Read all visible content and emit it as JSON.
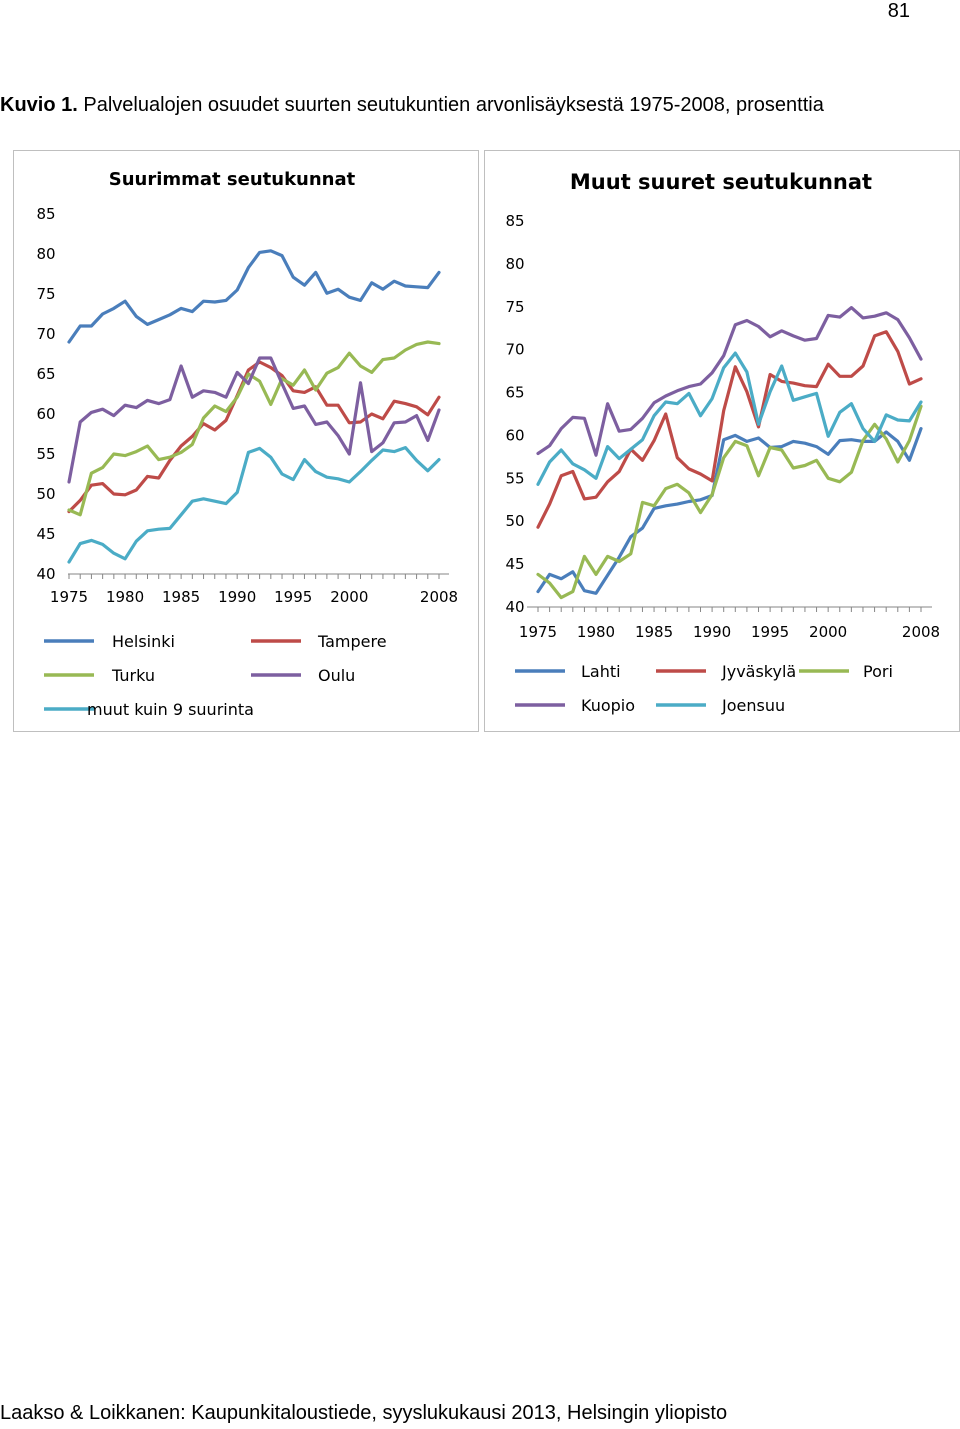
{
  "page_number": "81",
  "figure_label": "Kuvio 1.",
  "figure_title": "Palvelualojen osuudet suurten seutukuntien arvonlisäyksestä 1975-2008, prosenttia",
  "footer": "Laakso & Loikkanen: Kaupunkitaloustiede, syyslukukausi 2013, Helsingin yliopisto",
  "chart_data": [
    {
      "type": "line",
      "title": "Suurimmat seutukunnat",
      "ylim": [
        40,
        85
      ],
      "yticks": [
        "40",
        "45",
        "50",
        "55",
        "60",
        "65",
        "70",
        "75",
        "80",
        "85"
      ],
      "xtick_labels": [
        "1975",
        "1980",
        "1985",
        "1990",
        "1995",
        "2000",
        "2008"
      ],
      "xtick_years": [
        1975,
        1980,
        1985,
        1990,
        1995,
        2000,
        2008
      ],
      "xlim": [
        1975,
        2008
      ],
      "x": [
        1975,
        1976,
        1977,
        1978,
        1979,
        1980,
        1981,
        1982,
        1983,
        1984,
        1985,
        1986,
        1987,
        1988,
        1989,
        1990,
        1991,
        1992,
        1993,
        1994,
        1995,
        1996,
        1997,
        1998,
        1999,
        2000,
        2001,
        2002,
        2003,
        2004,
        2005,
        2006,
        2007,
        2008
      ],
      "series": [
        {
          "name": "Helsinki",
          "color": "#4a7ebb",
          "values": [
            69,
            71,
            71,
            72.5,
            73.2,
            74.1,
            72.2,
            71.2,
            71.8,
            72.4,
            73.2,
            72.8,
            74.1,
            74,
            74.2,
            75.5,
            78.3,
            80.2,
            80.4,
            79.8,
            77.1,
            76.1,
            77.7,
            75.1,
            75.6,
            74.6,
            74.2,
            76.4,
            75.6,
            76.6,
            76,
            75.9,
            75.8,
            77.7
          ]
        },
        {
          "name": "Tampere",
          "color": "#be4b48",
          "values": [
            47.8,
            49.2,
            51.1,
            51.3,
            50,
            49.9,
            50.5,
            52.2,
            52,
            54.2,
            56,
            57.2,
            58.8,
            58,
            59.2,
            62.3,
            65.5,
            66.5,
            65.8,
            64.8,
            62.9,
            62.7,
            63.4,
            61.1,
            61.1,
            58.9,
            59,
            60,
            59.4,
            61.6,
            61.3,
            60.9,
            59.9,
            62.1
          ]
        },
        {
          "name": "Turku",
          "color": "#98b954",
          "values": [
            48,
            47.4,
            52.6,
            53.3,
            55,
            54.8,
            55.3,
            56,
            54.3,
            54.6,
            55.2,
            56.2,
            59.5,
            61,
            60.3,
            62.1,
            65,
            64.1,
            61.2,
            64.4,
            63.6,
            65.5,
            63,
            65.1,
            65.8,
            67.6,
            66,
            65.2,
            66.8,
            67,
            68,
            68.7,
            69,
            68.8
          ]
        },
        {
          "name": "Oulu",
          "color": "#7d5fa0",
          "values": [
            51.5,
            59,
            60.2,
            60.6,
            59.8,
            61.1,
            60.8,
            61.7,
            61.3,
            61.8,
            66,
            62.1,
            62.9,
            62.7,
            62.1,
            65.2,
            63.8,
            67,
            67,
            63.8,
            60.7,
            61,
            58.7,
            59,
            57.3,
            55,
            63.9,
            55.3,
            56.4,
            58.9,
            59,
            59.8,
            56.7,
            60.5
          ]
        },
        {
          "name": "muut kuin 9 suurinta",
          "color": "#4bacc6",
          "values": [
            41.5,
            43.8,
            44.2,
            43.7,
            42.6,
            41.9,
            44.1,
            45.4,
            45.6,
            45.7,
            47.4,
            49.1,
            49.4,
            49.1,
            48.8,
            50.2,
            55.2,
            55.7,
            54.6,
            52.5,
            51.8,
            54.3,
            52.8,
            52.1,
            51.9,
            51.5,
            52.8,
            54.2,
            55.5,
            55.3,
            55.8,
            54.2,
            52.9,
            54.3
          ]
        }
      ],
      "legend": [
        [
          "Helsinki",
          "Tampere"
        ],
        [
          "Turku",
          "Oulu"
        ],
        [
          "muut kuin 9 suurinta"
        ]
      ]
    },
    {
      "type": "line",
      "title": "Muut suuret seutukunnat",
      "ylim": [
        40,
        85
      ],
      "yticks": [
        "40",
        "45",
        "50",
        "55",
        "60",
        "65",
        "70",
        "75",
        "80",
        "85"
      ],
      "xtick_labels": [
        "1975",
        "1980",
        "1985",
        "1990",
        "1995",
        "2000",
        "2008"
      ],
      "xtick_years": [
        1975,
        1980,
        1985,
        1990,
        1995,
        2000,
        2008
      ],
      "xlim": [
        1975,
        2008
      ],
      "x": [
        1975,
        1976,
        1977,
        1978,
        1979,
        1980,
        1981,
        1982,
        1983,
        1984,
        1985,
        1986,
        1987,
        1988,
        1989,
        1990,
        1991,
        1992,
        1993,
        1994,
        1995,
        1996,
        1997,
        1998,
        1999,
        2000,
        2001,
        2002,
        2003,
        2004,
        2005,
        2006,
        2007,
        2008
      ],
      "series": [
        {
          "name": "Lahti",
          "color": "#4a7ebb",
          "values": [
            41.8,
            43.8,
            43.3,
            44.1,
            41.9,
            41.6,
            43.7,
            45.8,
            48.2,
            49.2,
            51.5,
            51.8,
            52,
            52.3,
            52.5,
            53,
            59.5,
            60,
            59.3,
            59.7,
            58.6,
            58.7,
            59.3,
            59.1,
            58.7,
            57.8,
            59.4,
            59.5,
            59.3,
            59.3,
            60.4,
            59.3,
            57.1,
            60.8
          ]
        },
        {
          "name": "Jyväskylä",
          "color": "#be4b48",
          "values": [
            49.3,
            52,
            55.3,
            55.8,
            52.6,
            52.8,
            54.6,
            55.8,
            58.4,
            57.1,
            59.4,
            62.5,
            57.4,
            56.1,
            55.5,
            54.7,
            62.9,
            68,
            65.1,
            61,
            67.1,
            66.3,
            66.1,
            65.8,
            65.7,
            68.3,
            66.9,
            66.9,
            68.1,
            71.6,
            72.1,
            69.8,
            66,
            66.6
          ]
        },
        {
          "name": "Pori",
          "color": "#98b954",
          "values": [
            43.8,
            42.8,
            41.1,
            41.8,
            45.9,
            43.8,
            45.9,
            45.3,
            46.2,
            52.2,
            51.8,
            53.8,
            54.3,
            53.3,
            51,
            53.1,
            57.4,
            59.3,
            58.8,
            55.3,
            58.6,
            58.3,
            56.2,
            56.5,
            57.1,
            55,
            54.6,
            55.7,
            59.4,
            61.3,
            59.6,
            56.9,
            59.4,
            63.4
          ]
        },
        {
          "name": "Kuopio",
          "color": "#7d5fa0",
          "values": [
            57.9,
            58.8,
            60.8,
            62.1,
            62,
            57.7,
            63.7,
            60.5,
            60.7,
            62,
            63.8,
            64.6,
            65.2,
            65.7,
            66,
            67.3,
            69.3,
            72.9,
            73.4,
            72.7,
            71.5,
            72.2,
            71.6,
            71.1,
            71.3,
            74,
            73.8,
            74.9,
            73.7,
            73.9,
            74.3,
            73.5,
            71.4,
            68.9
          ]
        },
        {
          "name": "Joensuu",
          "color": "#4bacc6",
          "values": [
            54.3,
            56.9,
            58.3,
            56.7,
            56,
            55,
            58.7,
            57.3,
            58.4,
            59.5,
            62.3,
            63.9,
            63.7,
            64.9,
            62.3,
            64.3,
            67.9,
            69.6,
            67.4,
            61.3,
            65.1,
            68.1,
            64.1,
            64.5,
            64.9,
            59.9,
            62.7,
            63.7,
            60.8,
            59.3,
            62.4,
            61.8,
            61.7,
            63.9
          ]
        }
      ],
      "legend": [
        [
          "Lahti",
          "Jyväskylä",
          "Pori"
        ],
        [
          "Kuopio",
          "Joensuu"
        ]
      ]
    }
  ]
}
